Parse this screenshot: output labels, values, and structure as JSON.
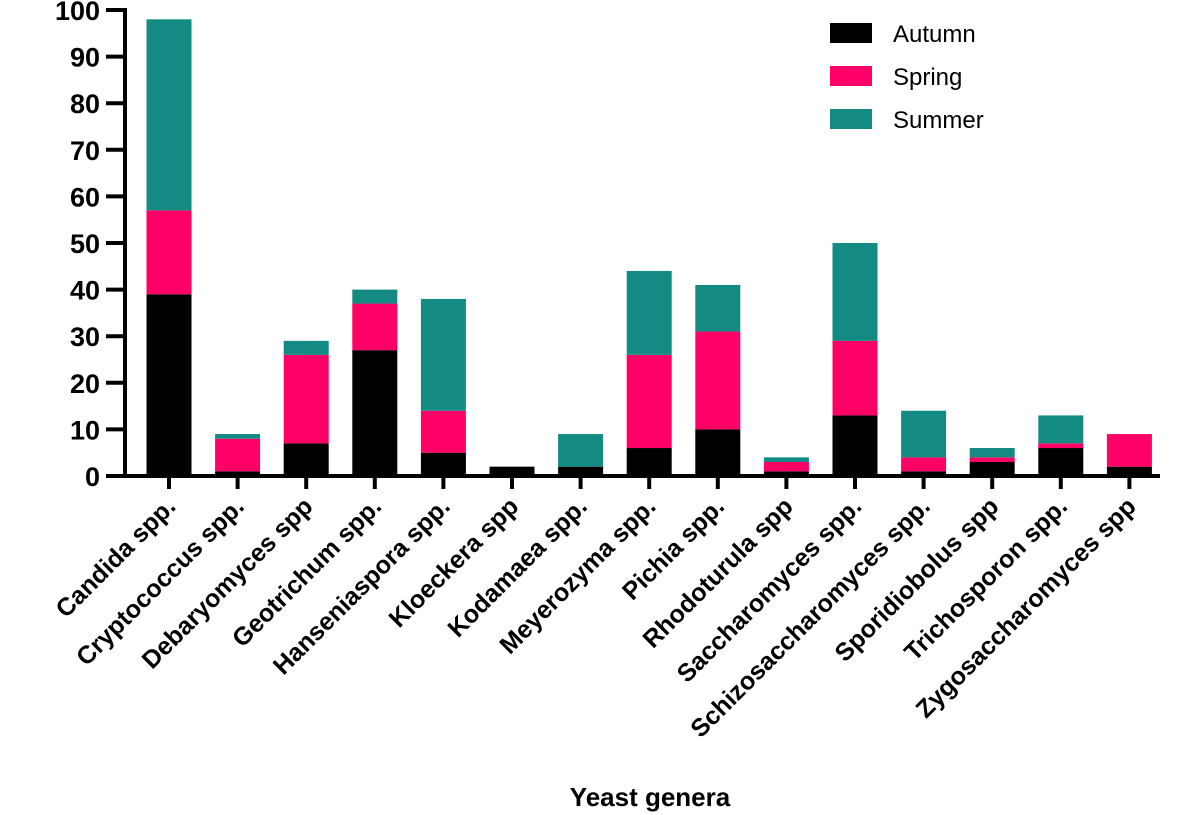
{
  "chart_data": {
    "type": "bar",
    "stacked": true,
    "title": "",
    "xlabel": "Yeast genera",
    "ylabel": "",
    "ylim": [
      0,
      100
    ],
    "yticks": [
      0,
      10,
      20,
      30,
      40,
      50,
      60,
      70,
      80,
      90,
      100
    ],
    "grid": false,
    "legend_position": "top-right",
    "categories": [
      "Candida spp.",
      "Cryptococcus spp.",
      "Debaryomyces spp",
      "Geotrichum spp.",
      "Hanseniaspora spp.",
      "Kloeckera spp",
      "Kodamaea spp.",
      "Meyerozyma spp.",
      "Pichia spp.",
      "Rhodoturula spp",
      "Saccharomyces spp.",
      "Schizosaccharomyces spp.",
      "Sporidiobolus spp",
      "Trichosporon spp.",
      "Zygosaccharomyces spp"
    ],
    "series": [
      {
        "name": "Autumn",
        "color": "#000000",
        "values": [
          39,
          1,
          7,
          27,
          5,
          2,
          2,
          6,
          10,
          1,
          13,
          1,
          3,
          6,
          2
        ]
      },
      {
        "name": "Spring",
        "color": "#ff0066",
        "values": [
          18,
          7,
          19,
          10,
          9,
          0,
          0,
          20,
          21,
          2,
          16,
          3,
          1,
          1,
          7
        ]
      },
      {
        "name": "Summer",
        "color": "#138a82",
        "values": [
          41,
          1,
          3,
          3,
          24,
          0,
          7,
          18,
          10,
          1,
          21,
          10,
          2,
          6,
          0
        ]
      }
    ]
  }
}
